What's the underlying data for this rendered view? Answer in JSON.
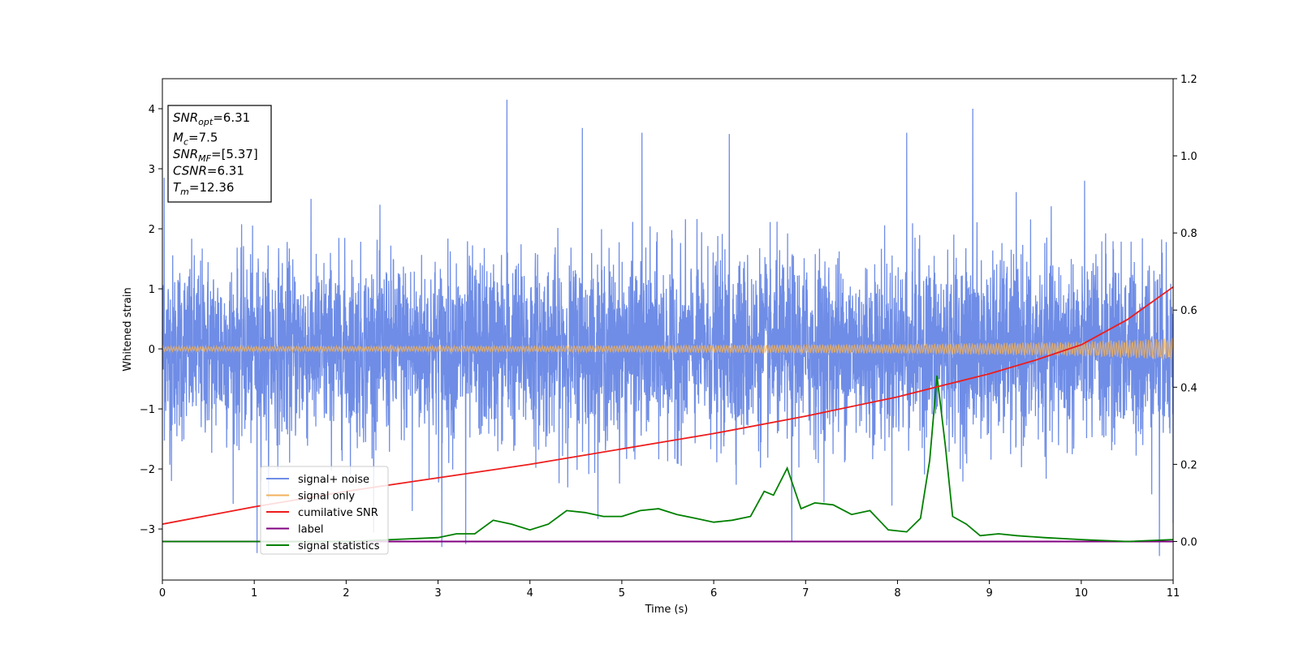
{
  "chart_data": {
    "type": "line",
    "xlabel": "Time (s)",
    "ylabel": "Whitened strain",
    "xlim": [
      0,
      11
    ],
    "ylim": [
      -3.85,
      4.5
    ],
    "y2lim": [
      -0.1,
      1.2
    ],
    "xticks": [
      0,
      1,
      2,
      3,
      4,
      5,
      6,
      7,
      8,
      9,
      10,
      11
    ],
    "yticks": [
      -3,
      -2,
      -1,
      0,
      1,
      2,
      3,
      4
    ],
    "y2ticks": [
      0.0,
      0.2,
      0.4,
      0.6,
      0.8,
      1.0,
      1.2
    ],
    "xtick_labels": [
      "0",
      "1",
      "2",
      "3",
      "4",
      "5",
      "6",
      "7",
      "8",
      "9",
      "10",
      "11"
    ],
    "ytick_labels": [
      "−3",
      "−2",
      "−1",
      "0",
      "1",
      "2",
      "3",
      "4"
    ],
    "y2tick_labels": [
      "0.0",
      "0.2",
      "0.4",
      "0.6",
      "0.8",
      "1.0",
      "1.2"
    ],
    "legend_placement": "lower-left",
    "grid": false,
    "series": [
      {
        "name": "signal+ noise",
        "axis": "left",
        "color": "#6f8de6",
        "noise_std": 0.75,
        "spikes": [
          [
            0.02,
            2.85
          ],
          [
            0.1,
            -2.2
          ],
          [
            1.03,
            -3.4
          ],
          [
            2.72,
            -2.7
          ],
          [
            3.04,
            -3.3
          ],
          [
            3.3,
            -3.25
          ],
          [
            3.75,
            4.15
          ],
          [
            4.57,
            3.68
          ],
          [
            5.22,
            3.6
          ],
          [
            6.17,
            3.58
          ],
          [
            6.85,
            -3.2
          ],
          [
            8.1,
            3.6
          ],
          [
            8.82,
            4.0
          ],
          [
            10.85,
            -3.45
          ],
          [
            11.0,
            -2.9
          ]
        ],
        "signal_envelope": [
          [
            0,
            0.04
          ],
          [
            4,
            0.05
          ],
          [
            8,
            0.08
          ],
          [
            10,
            0.12
          ],
          [
            11,
            0.18
          ]
        ]
      },
      {
        "name": "signal only",
        "axis": "left",
        "color": "#f2b15b",
        "envelope": [
          [
            0,
            0.04
          ],
          [
            4,
            0.05
          ],
          [
            8,
            0.08
          ],
          [
            10,
            0.12
          ],
          [
            11,
            0.18
          ]
        ]
      },
      {
        "name": "cumilative SNR",
        "axis": "right",
        "color": "#ee1c1c",
        "x": [
          0,
          1,
          2,
          3,
          4,
          5,
          6,
          7,
          8,
          8.5,
          9,
          9.5,
          10,
          10.5,
          11
        ],
        "y": [
          0.045,
          0.09,
          0.13,
          0.165,
          0.2,
          0.24,
          0.28,
          0.325,
          0.375,
          0.405,
          0.435,
          0.47,
          0.51,
          0.575,
          0.66
        ]
      },
      {
        "name": "label",
        "axis": "right",
        "color": "#800080",
        "x": [
          0,
          11
        ],
        "y": [
          0.0,
          0.0
        ]
      },
      {
        "name": "signal statistics",
        "axis": "right",
        "color": "#008000",
        "x": [
          0,
          1,
          2,
          2.5,
          3,
          3.2,
          3.4,
          3.6,
          3.8,
          4.0,
          4.2,
          4.4,
          4.6,
          4.8,
          5.0,
          5.2,
          5.4,
          5.6,
          5.8,
          6.0,
          6.2,
          6.4,
          6.55,
          6.65,
          6.8,
          6.95,
          7.1,
          7.3,
          7.5,
          7.7,
          7.9,
          8.1,
          8.25,
          8.35,
          8.43,
          8.52,
          8.6,
          8.75,
          8.9,
          9.1,
          9.3,
          9.6,
          10.0,
          10.5,
          11.0
        ],
        "y": [
          0.0,
          0.0,
          0.0,
          0.005,
          0.01,
          0.02,
          0.02,
          0.055,
          0.045,
          0.03,
          0.045,
          0.08,
          0.075,
          0.065,
          0.065,
          0.08,
          0.085,
          0.07,
          0.06,
          0.05,
          0.055,
          0.065,
          0.13,
          0.12,
          0.19,
          0.085,
          0.1,
          0.095,
          0.07,
          0.08,
          0.03,
          0.025,
          0.06,
          0.21,
          0.43,
          0.25,
          0.065,
          0.045,
          0.015,
          0.02,
          0.015,
          0.01,
          0.005,
          0.0,
          0.005
        ]
      }
    ],
    "annotation_lines": [
      {
        "label": "SNR",
        "sub": "opt",
        "text": "=6.31"
      },
      {
        "label": "M",
        "sub": "c",
        "text": "=7.5"
      },
      {
        "label": "SNR",
        "sub": "MF",
        "text": "=[5.37]"
      },
      {
        "label": "CSNR",
        "sub": "",
        "text": "=6.31"
      },
      {
        "label": "T",
        "sub": "m",
        "text": "=12.36"
      }
    ]
  }
}
